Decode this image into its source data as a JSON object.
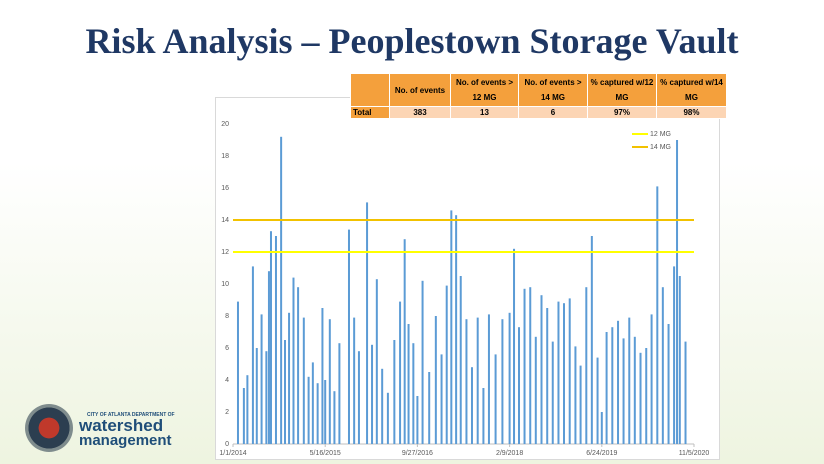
{
  "title": "Risk Analysis – Peoplestown Storage Vault",
  "table": {
    "header": [
      "No. of events",
      "No. of events > 12 MG",
      "No. of events > 14 MG",
      "% captured w/12 MG",
      "% captured w/14 MG"
    ],
    "rows": [
      [
        "Total",
        "383",
        "13",
        "6",
        "97%",
        "98%"
      ]
    ]
  },
  "logo": {
    "small": "CITY OF ATLANTA DEPARTMENT OF",
    "line1": "watershed",
    "line2": "management"
  },
  "chart_data": {
    "type": "bar",
    "color": "#5b9bd5",
    "x": [
      "1/28/2014",
      "3/1/2014",
      "3/20/2014",
      "4/19/2014",
      "5/10/2014",
      "6/5/2014",
      "7/1/2014",
      "7/15/2014",
      "7/26/2014",
      "8/22/2014",
      "9/19/2014",
      "10/10/2014",
      "11/1/2014",
      "11/25/2014",
      "12/20/2014",
      "1/20/2015",
      "2/15/2015",
      "3/10/2015",
      "4/5/2015",
      "5/1/2015",
      "5/16/2015",
      "6/10/2015",
      "7/5/2015",
      "8/1/2015",
      "9/22/2015",
      "10/20/2015",
      "11/15/2015",
      "12/29/2015",
      "1/25/2016",
      "2/20/2016",
      "3/20/2016",
      "4/20/2016",
      "5/25/2016",
      "6/25/2016",
      "7/20/2016",
      "8/10/2016",
      "9/5/2016",
      "9/27/2016",
      "10/25/2016",
      "11/30/2016",
      "1/5/2017",
      "2/5/2017",
      "3/5/2017",
      "3/30/2017",
      "4/25/2017",
      "5/20/2017",
      "6/20/2017",
      "7/20/2017",
      "8/20/2017",
      "9/20/2017",
      "10/20/2017",
      "11/25/2017",
      "1/1/2018",
      "2/9/2018",
      "3/5/2018",
      "4/1/2018",
      "5/1/2018",
      "6/1/2018",
      "7/1/2018",
      "8/1/2018",
      "9/1/2018",
      "10/1/2018",
      "11/1/2018",
      "12/1/2018",
      "1/1/2019",
      "2/1/2019",
      "3/1/2019",
      "4/1/2019",
      "5/1/2019",
      "6/1/2019",
      "6/24/2019",
      "7/20/2019",
      "8/20/2019",
      "9/20/2019",
      "10/20/2019",
      "11/20/2019",
      "12/20/2019",
      "1/20/2020",
      "2/20/2020",
      "3/20/2020",
      "4/20/2020",
      "5/20/2020",
      "6/20/2020",
      "7/20/2020",
      "8/5/2020",
      "8/20/2020",
      "9/20/2020"
    ],
    "values": [
      8.9,
      3.5,
      4.3,
      11.1,
      6.0,
      8.1,
      5.8,
      10.8,
      13.3,
      13.0,
      19.2,
      6.5,
      8.2,
      10.4,
      9.8,
      7.9,
      4.2,
      5.1,
      3.8,
      8.5,
      4.0,
      7.8,
      3.3,
      6.3,
      13.4,
      7.9,
      5.8,
      15.1,
      6.2,
      10.3,
      4.7,
      3.2,
      6.5,
      8.9,
      12.8,
      7.5,
      6.3,
      3.0,
      10.2,
      4.5,
      8.0,
      5.6,
      9.9,
      14.6,
      14.3,
      10.5,
      7.8,
      4.8,
      7.9,
      3.5,
      8.1,
      5.6,
      7.8,
      8.2,
      12.2,
      7.3,
      9.7,
      9.8,
      6.7,
      9.3,
      8.5,
      6.4,
      8.9,
      8.8,
      9.1,
      6.1,
      4.9,
      9.8,
      13.0,
      5.4,
      2.0,
      7.0,
      7.3,
      7.7,
      6.6,
      7.9,
      6.7,
      5.7,
      6.0,
      8.1,
      16.1,
      9.8,
      7.5,
      11.1,
      19.0,
      10.5,
      6.4
    ],
    "xlim": [
      "1/1/2014",
      "11/5/2020"
    ],
    "xticks": [
      "1/1/2014",
      "5/16/2015",
      "9/27/2016",
      "2/9/2018",
      "6/24/2019",
      "11/5/2020"
    ],
    "ylim": [
      0,
      20
    ],
    "yticks": [
      0,
      2,
      4,
      6,
      8,
      10,
      12,
      14,
      16,
      18,
      20
    ],
    "grid": false,
    "lines": [
      {
        "name": "12 MG",
        "value": 12,
        "color": "#ffff00"
      },
      {
        "name": "14 MG",
        "value": 14,
        "color": "#f2c200"
      }
    ],
    "legend": "upper right"
  }
}
